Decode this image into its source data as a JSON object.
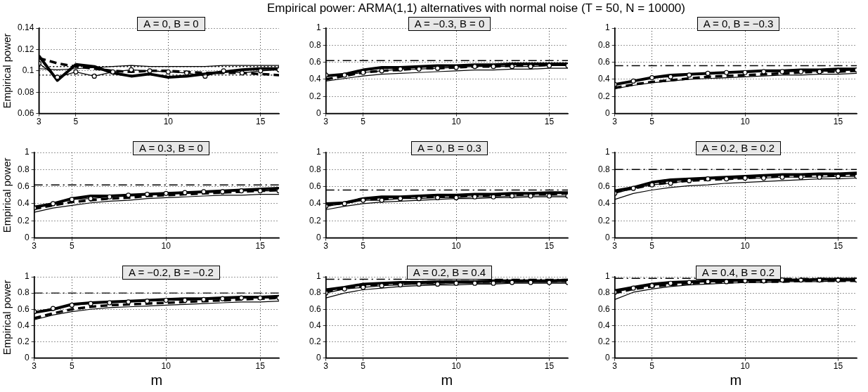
{
  "chart_data": [
    {
      "type": "other",
      "title": "Empirical power: ARMA(1,1) alternatives with normal noise (T = 50, N = 10000)"
    },
    {
      "type": "line",
      "title": "A = 0, B = 0",
      "ylabel": "Empirical power",
      "x": [
        3,
        4,
        5,
        6,
        7,
        8,
        9,
        10,
        11,
        12,
        13,
        14,
        15,
        16
      ],
      "xlim": [
        3,
        16
      ],
      "xticks": [
        3,
        5,
        10,
        15
      ],
      "ylim": [
        0.06,
        0.14
      ],
      "yticks": [
        0.06,
        0.08,
        0.1,
        0.12,
        0.14
      ],
      "grid": true,
      "ref_lines": [
        {
          "axis": "y",
          "value": 0.104,
          "line_style": "dotted"
        },
        {
          "axis": "y",
          "value": 0.096,
          "line_style": "dotted"
        }
      ],
      "series": [
        {
          "color": "#000000",
          "values": [
            0.102,
            0.101,
            0.102,
            0.103,
            0.104,
            0.105,
            0.104,
            0.104,
            0.104,
            0.104,
            0.105,
            0.105,
            0.105,
            0.105
          ]
        },
        {
          "color": "#000000",
          "values": [
            0.114,
            0.091,
            0.106,
            0.104,
            0.098,
            0.095,
            0.097,
            0.094,
            0.095,
            0.097,
            0.099,
            0.101,
            0.102,
            0.102
          ]
        },
        {
          "color": "#000000",
          "line_style": "dashed",
          "values": [
            0.112,
            0.107,
            0.104,
            0.102,
            0.1,
            0.099,
            0.1,
            0.1,
            0.099,
            0.098,
            0.098,
            0.098,
            0.097,
            0.096
          ]
        },
        {
          "color": "#000000",
          "marker": "circle",
          "values": [
            0.107,
            0.094,
            0.099,
            0.095,
            0.099,
            0.101,
            0.1,
            0.099,
            0.098,
            0.095,
            0.1,
            0.098,
            0.1,
            0.101
          ]
        }
      ]
    },
    {
      "type": "line",
      "title": "A = −0.3, B = 0",
      "x": [
        3,
        4,
        5,
        6,
        7,
        8,
        9,
        10,
        11,
        12,
        13,
        14,
        15,
        16
      ],
      "xlim": [
        3,
        16
      ],
      "xticks": [
        3,
        5,
        10,
        15
      ],
      "ylim": [
        0,
        1
      ],
      "yticks": [
        0,
        0.2,
        0.4,
        0.6,
        0.8,
        1
      ],
      "grid": true,
      "ref_lines": [
        {
          "axis": "y",
          "value": 0.62,
          "line_style": "dashed"
        }
      ],
      "series": [
        {
          "color": "#000000",
          "values": [
            0.38,
            0.41,
            0.44,
            0.46,
            0.47,
            0.48,
            0.49,
            0.5,
            0.51,
            0.51,
            0.52,
            0.52,
            0.53,
            0.53
          ]
        },
        {
          "color": "#000000",
          "values": [
            0.44,
            0.46,
            0.51,
            0.54,
            0.54,
            0.55,
            0.56,
            0.56,
            0.57,
            0.57,
            0.58,
            0.58,
            0.58,
            0.58
          ]
        },
        {
          "color": "#000000",
          "line_style": "dashed",
          "values": [
            0.4,
            0.44,
            0.48,
            0.5,
            0.51,
            0.53,
            0.53,
            0.54,
            0.55,
            0.55,
            0.56,
            0.56,
            0.57,
            0.57
          ]
        },
        {
          "color": "#000000",
          "marker": "circle",
          "values": [
            0.45,
            0.45,
            0.48,
            0.5,
            0.52,
            0.52,
            0.53,
            0.54,
            0.55,
            0.55,
            0.55,
            0.55,
            0.56,
            0.56
          ]
        }
      ]
    },
    {
      "type": "line",
      "title": "A = 0, B = −0.3",
      "x": [
        3,
        4,
        5,
        6,
        7,
        8,
        9,
        10,
        11,
        12,
        13,
        14,
        15,
        16
      ],
      "xlim": [
        3,
        16
      ],
      "xticks": [
        3,
        5,
        10,
        15
      ],
      "ylim": [
        0,
        1
      ],
      "yticks": [
        0,
        0.2,
        0.4,
        0.6,
        0.8,
        1
      ],
      "grid": true,
      "ref_lines": [
        {
          "axis": "y",
          "value": 0.56,
          "line_style": "dashed"
        }
      ],
      "series": [
        {
          "color": "#000000",
          "values": [
            0.29,
            0.33,
            0.36,
            0.38,
            0.4,
            0.41,
            0.42,
            0.43,
            0.44,
            0.45,
            0.45,
            0.46,
            0.46,
            0.47
          ]
        },
        {
          "color": "#000000",
          "values": [
            0.34,
            0.38,
            0.42,
            0.45,
            0.46,
            0.47,
            0.48,
            0.49,
            0.5,
            0.5,
            0.51,
            0.51,
            0.52,
            0.52
          ]
        },
        {
          "color": "#000000",
          "line_style": "dashed",
          "values": [
            0.3,
            0.34,
            0.37,
            0.39,
            0.41,
            0.43,
            0.44,
            0.45,
            0.46,
            0.47,
            0.48,
            0.49,
            0.49,
            0.5
          ]
        },
        {
          "color": "#000000",
          "marker": "circle",
          "values": [
            0.34,
            0.38,
            0.42,
            0.43,
            0.45,
            0.47,
            0.48,
            0.48,
            0.49,
            0.49,
            0.49,
            0.49,
            0.5,
            0.51
          ]
        }
      ]
    },
    {
      "type": "line",
      "title": "A = 0.3, B = 0",
      "ylabel": "Empirical power",
      "x": [
        3,
        4,
        5,
        6,
        7,
        8,
        9,
        10,
        11,
        12,
        13,
        14,
        15,
        16
      ],
      "xlim": [
        3,
        16
      ],
      "xticks": [
        3,
        5,
        10,
        15
      ],
      "ylim": [
        0,
        1
      ],
      "yticks": [
        0,
        0.2,
        0.4,
        0.6,
        0.8,
        1
      ],
      "grid": true,
      "ref_lines": [
        {
          "axis": "y",
          "value": 0.62,
          "line_style": "dashed"
        }
      ],
      "series": [
        {
          "color": "#000000",
          "values": [
            0.3,
            0.35,
            0.38,
            0.41,
            0.43,
            0.44,
            0.46,
            0.47,
            0.48,
            0.49,
            0.5,
            0.5,
            0.51,
            0.51
          ]
        },
        {
          "color": "#000000",
          "values": [
            0.36,
            0.4,
            0.46,
            0.49,
            0.49,
            0.5,
            0.51,
            0.52,
            0.53,
            0.54,
            0.55,
            0.56,
            0.57,
            0.58
          ]
        },
        {
          "color": "#000000",
          "line_style": "dashed",
          "values": [
            0.34,
            0.38,
            0.42,
            0.44,
            0.46,
            0.47,
            0.49,
            0.5,
            0.51,
            0.52,
            0.53,
            0.54,
            0.55,
            0.56
          ]
        },
        {
          "color": "#000000",
          "marker": "circle",
          "values": [
            0.35,
            0.4,
            0.45,
            0.46,
            0.48,
            0.5,
            0.51,
            0.52,
            0.53,
            0.54,
            0.54,
            0.55,
            0.55,
            0.55
          ]
        }
      ]
    },
    {
      "type": "line",
      "title": "A = 0, B = 0.3",
      "x": [
        3,
        4,
        5,
        6,
        7,
        8,
        9,
        10,
        11,
        12,
        13,
        14,
        15,
        16
      ],
      "xlim": [
        3,
        16
      ],
      "xticks": [
        3,
        5,
        10,
        15
      ],
      "ylim": [
        0,
        1
      ],
      "yticks": [
        0,
        0.2,
        0.4,
        0.6,
        0.8,
        1
      ],
      "grid": true,
      "ref_lines": [
        {
          "axis": "y",
          "value": 0.56,
          "line_style": "dashed"
        }
      ],
      "series": [
        {
          "color": "#000000",
          "values": [
            0.33,
            0.37,
            0.4,
            0.42,
            0.43,
            0.44,
            0.45,
            0.46,
            0.46,
            0.47,
            0.47,
            0.48,
            0.48,
            0.48
          ]
        },
        {
          "color": "#000000",
          "values": [
            0.4,
            0.41,
            0.46,
            0.48,
            0.48,
            0.49,
            0.5,
            0.5,
            0.51,
            0.51,
            0.52,
            0.52,
            0.53,
            0.53
          ]
        },
        {
          "color": "#000000",
          "line_style": "dashed",
          "values": [
            0.38,
            0.41,
            0.45,
            0.46,
            0.47,
            0.48,
            0.48,
            0.49,
            0.49,
            0.5,
            0.5,
            0.51,
            0.51,
            0.52
          ]
        },
        {
          "color": "#000000",
          "marker": "circle",
          "values": [
            0.37,
            0.4,
            0.44,
            0.44,
            0.46,
            0.46,
            0.47,
            0.47,
            0.48,
            0.48,
            0.49,
            0.49,
            0.49,
            0.49
          ]
        }
      ]
    },
    {
      "type": "line",
      "title": "A = 0.2, B = 0.2",
      "x": [
        3,
        4,
        5,
        6,
        7,
        8,
        9,
        10,
        11,
        12,
        13,
        14,
        15,
        16
      ],
      "xlim": [
        3,
        16
      ],
      "xticks": [
        3,
        5,
        10,
        15
      ],
      "ylim": [
        0,
        1
      ],
      "yticks": [
        0,
        0.2,
        0.4,
        0.6,
        0.8,
        1
      ],
      "grid": true,
      "ref_lines": [
        {
          "axis": "y",
          "value": 0.8,
          "line_style": "dashed"
        }
      ],
      "series": [
        {
          "color": "#000000",
          "values": [
            0.45,
            0.52,
            0.56,
            0.59,
            0.61,
            0.62,
            0.64,
            0.65,
            0.66,
            0.67,
            0.68,
            0.69,
            0.69,
            0.7
          ]
        },
        {
          "color": "#000000",
          "values": [
            0.55,
            0.59,
            0.65,
            0.68,
            0.69,
            0.7,
            0.71,
            0.72,
            0.73,
            0.74,
            0.74,
            0.75,
            0.75,
            0.76
          ]
        },
        {
          "color": "#000000",
          "line_style": "dashed",
          "values": [
            0.54,
            0.58,
            0.62,
            0.65,
            0.67,
            0.68,
            0.69,
            0.7,
            0.71,
            0.72,
            0.72,
            0.73,
            0.73,
            0.74
          ]
        },
        {
          "color": "#000000",
          "marker": "circle",
          "values": [
            0.52,
            0.58,
            0.62,
            0.64,
            0.67,
            0.69,
            0.69,
            0.7,
            0.7,
            0.71,
            0.71,
            0.71,
            0.72,
            0.72
          ]
        }
      ]
    },
    {
      "type": "line",
      "title": "A = −0.2, B = −0.2",
      "ylabel": "Empirical power",
      "xlabel": "m",
      "x": [
        3,
        4,
        5,
        6,
        7,
        8,
        9,
        10,
        11,
        12,
        13,
        14,
        15,
        16
      ],
      "xlim": [
        3,
        16
      ],
      "xticks": [
        3,
        5,
        10,
        15
      ],
      "ylim": [
        0,
        1
      ],
      "yticks": [
        0,
        0.2,
        0.4,
        0.6,
        0.8,
        1
      ],
      "grid": true,
      "ref_lines": [
        {
          "axis": "y",
          "value": 0.8,
          "line_style": "dashed"
        }
      ],
      "series": [
        {
          "color": "#000000",
          "values": [
            0.47,
            0.53,
            0.57,
            0.6,
            0.62,
            0.63,
            0.64,
            0.65,
            0.66,
            0.67,
            0.68,
            0.69,
            0.69,
            0.7
          ]
        },
        {
          "color": "#000000",
          "values": [
            0.56,
            0.6,
            0.66,
            0.68,
            0.69,
            0.7,
            0.71,
            0.72,
            0.73,
            0.73,
            0.74,
            0.75,
            0.75,
            0.76
          ]
        },
        {
          "color": "#000000",
          "line_style": "dashed",
          "values": [
            0.49,
            0.55,
            0.6,
            0.63,
            0.65,
            0.66,
            0.67,
            0.68,
            0.69,
            0.7,
            0.71,
            0.72,
            0.73,
            0.74
          ]
        },
        {
          "color": "#000000",
          "marker": "circle",
          "values": [
            0.57,
            0.61,
            0.65,
            0.67,
            0.68,
            0.69,
            0.7,
            0.71,
            0.71,
            0.72,
            0.73,
            0.74,
            0.74,
            0.74
          ]
        }
      ]
    },
    {
      "type": "line",
      "title": "A = 0.2, B = 0.4",
      "xlabel": "m",
      "x": [
        3,
        4,
        5,
        6,
        7,
        8,
        9,
        10,
        11,
        12,
        13,
        14,
        15,
        16
      ],
      "xlim": [
        3,
        16
      ],
      "xticks": [
        3,
        5,
        10,
        15
      ],
      "ylim": [
        0,
        1
      ],
      "yticks": [
        0,
        0.2,
        0.4,
        0.6,
        0.8,
        1
      ],
      "grid": true,
      "ref_lines": [
        {
          "axis": "y",
          "value": 0.97,
          "line_style": "dashed"
        }
      ],
      "series": [
        {
          "color": "#000000",
          "values": [
            0.74,
            0.8,
            0.84,
            0.86,
            0.88,
            0.89,
            0.9,
            0.9,
            0.91,
            0.91,
            0.92,
            0.92,
            0.92,
            0.92
          ]
        },
        {
          "color": "#000000",
          "values": [
            0.84,
            0.87,
            0.91,
            0.92,
            0.93,
            0.93,
            0.94,
            0.94,
            0.94,
            0.95,
            0.95,
            0.95,
            0.95,
            0.96
          ]
        },
        {
          "color": "#000000",
          "line_style": "dashed",
          "values": [
            0.82,
            0.86,
            0.89,
            0.91,
            0.92,
            0.93,
            0.93,
            0.94,
            0.94,
            0.94,
            0.95,
            0.95,
            0.95,
            0.95
          ]
        },
        {
          "color": "#000000",
          "marker": "circle",
          "values": [
            0.8,
            0.85,
            0.87,
            0.89,
            0.9,
            0.91,
            0.91,
            0.92,
            0.92,
            0.92,
            0.93,
            0.93,
            0.93,
            0.93
          ]
        }
      ]
    },
    {
      "type": "line",
      "title": "A = 0.4, B = 0.2",
      "xlabel": "m",
      "x": [
        3,
        4,
        5,
        6,
        7,
        8,
        9,
        10,
        11,
        12,
        13,
        14,
        15,
        16
      ],
      "xlim": [
        3,
        16
      ],
      "xticks": [
        3,
        5,
        10,
        15
      ],
      "ylim": [
        0,
        1
      ],
      "yticks": [
        0,
        0.2,
        0.4,
        0.6,
        0.8,
        1
      ],
      "grid": true,
      "ref_lines": [
        {
          "axis": "y",
          "value": 0.98,
          "line_style": "dashed"
        }
      ],
      "series": [
        {
          "color": "#000000",
          "values": [
            0.72,
            0.81,
            0.85,
            0.88,
            0.9,
            0.91,
            0.92,
            0.93,
            0.93,
            0.94,
            0.94,
            0.94,
            0.95,
            0.95
          ]
        },
        {
          "color": "#000000",
          "values": [
            0.83,
            0.87,
            0.91,
            0.93,
            0.94,
            0.95,
            0.95,
            0.96,
            0.96,
            0.96,
            0.96,
            0.97,
            0.97,
            0.97
          ]
        },
        {
          "color": "#000000",
          "line_style": "dashed",
          "values": [
            0.8,
            0.85,
            0.88,
            0.9,
            0.92,
            0.93,
            0.93,
            0.94,
            0.94,
            0.94,
            0.95,
            0.95,
            0.95,
            0.95
          ]
        },
        {
          "color": "#000000",
          "marker": "circle",
          "values": [
            0.81,
            0.86,
            0.89,
            0.92,
            0.93,
            0.94,
            0.94,
            0.95,
            0.95,
            0.96,
            0.96,
            0.96,
            0.96,
            0.96
          ]
        }
      ]
    }
  ]
}
